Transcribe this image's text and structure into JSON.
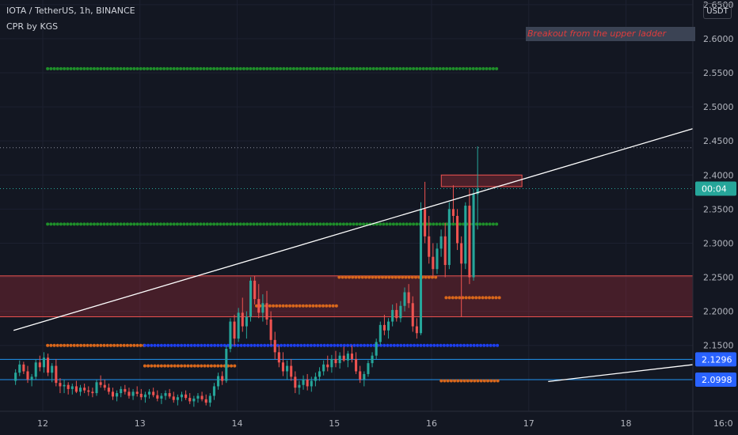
{
  "header": {
    "symbol_line": "IOTA / TetherUS, 1h, BINANCE",
    "indicator_line": "CPR by KGS"
  },
  "currency_button": "USDT",
  "annotation": "Breakout from the upper ladder",
  "colors": {
    "background": "#131722",
    "up": "#26a69a",
    "down": "#ef5350",
    "cpr_green": "#1f8f2a",
    "cpr_orange": "#d9671b",
    "cpr_blue": "#1e3ff0",
    "zone": "#b8303a",
    "hline": "#2196f3",
    "trendline": "#ffffff",
    "price_tag": "#26a69a",
    "axis_tag": "#2962ff"
  },
  "chart_data": {
    "type": "candlestick",
    "ylim": [
      2.095,
      2.65
    ],
    "yticks": [
      "2.1500",
      "2.2000",
      "2.2500",
      "2.3000",
      "2.3500",
      "2.4000",
      "2.4500",
      "2.5000",
      "2.5500",
      "2.6000",
      "2.6500"
    ],
    "xlim": [
      11.7,
      19.0
    ],
    "xticks": [
      {
        "label": "12",
        "value": 12
      },
      {
        "label": "13",
        "value": 13
      },
      {
        "label": "14",
        "value": 14
      },
      {
        "label": "15",
        "value": 15
      },
      {
        "label": "16",
        "value": 16
      },
      {
        "label": "17",
        "value": 17
      },
      {
        "label": "18",
        "value": 18
      },
      {
        "label": "16:0",
        "value": 19
      }
    ],
    "price_labels": [
      {
        "text": "00:04",
        "value": 2.38,
        "kind": "last"
      },
      {
        "text": "2.1296",
        "value": 2.1296,
        "kind": "line"
      },
      {
        "text": "2.0998",
        "value": 2.0998,
        "kind": "line"
      }
    ],
    "horizontal_lines": [
      2.1296,
      2.0998
    ],
    "dotted_levels": [
      2.44,
      2.38
    ],
    "zone": {
      "from": 12.0,
      "to": 19.0,
      "top": 2.252,
      "bottom": 2.192
    },
    "small_box": {
      "from": 16.1,
      "to": 16.93,
      "top": 2.4,
      "bottom": 2.383
    },
    "trendlines": [
      {
        "x1": 11.7,
        "y1": 2.172,
        "x2": 18.9,
        "y2": 2.477
      },
      {
        "x1": 17.2,
        "y1": 2.097,
        "x2": 19.0,
        "y2": 2.127
      }
    ],
    "cpr_levels": [
      {
        "color": "green",
        "from": 12.05,
        "to": 16.7,
        "value": 2.556
      },
      {
        "color": "green",
        "from": 12.05,
        "to": 16.7,
        "value": 2.328
      },
      {
        "color": "orange",
        "from": 12.05,
        "to": 13.05,
        "value": 2.15
      },
      {
        "color": "blue",
        "from": 13.05,
        "to": 16.7,
        "value": 2.15
      },
      {
        "color": "orange",
        "from": 13.05,
        "to": 14.0,
        "value": 2.12
      },
      {
        "color": "orange",
        "from": 14.2,
        "to": 15.05,
        "value": 2.208
      },
      {
        "color": "orange",
        "from": 15.05,
        "to": 16.05,
        "value": 2.25
      },
      {
        "color": "orange",
        "from": 16.15,
        "to": 16.7,
        "value": 2.22
      },
      {
        "color": "orange",
        "from": 16.1,
        "to": 16.7,
        "value": 2.098
      }
    ],
    "candles_step": 0.0417,
    "candles_start": 11.72,
    "candles": [
      [
        2.098,
        2.115,
        2.092,
        2.11
      ],
      [
        2.11,
        2.128,
        2.105,
        2.122
      ],
      [
        2.122,
        2.126,
        2.108,
        2.112
      ],
      [
        2.112,
        2.12,
        2.095,
        2.1
      ],
      [
        2.1,
        2.108,
        2.09,
        2.104
      ],
      [
        2.104,
        2.13,
        2.1,
        2.125
      ],
      [
        2.125,
        2.135,
        2.112,
        2.118
      ],
      [
        2.118,
        2.14,
        2.11,
        2.132
      ],
      [
        2.132,
        2.138,
        2.105,
        2.11
      ],
      [
        2.11,
        2.124,
        2.096,
        2.12
      ],
      [
        2.12,
        2.13,
        2.09,
        2.095
      ],
      [
        2.095,
        2.102,
        2.08,
        2.09
      ],
      [
        2.09,
        2.1,
        2.08,
        2.092
      ],
      [
        2.092,
        2.096,
        2.078,
        2.086
      ],
      [
        2.086,
        2.094,
        2.078,
        2.09
      ],
      [
        2.09,
        2.098,
        2.08,
        2.082
      ],
      [
        2.082,
        2.092,
        2.076,
        2.088
      ],
      [
        2.088,
        2.094,
        2.08,
        2.084
      ],
      [
        2.084,
        2.09,
        2.076,
        2.082
      ],
      [
        2.082,
        2.088,
        2.074,
        2.08
      ],
      [
        2.08,
        2.1,
        2.076,
        2.096
      ],
      [
        2.096,
        2.106,
        2.088,
        2.092
      ],
      [
        2.092,
        2.1,
        2.084,
        2.088
      ],
      [
        2.088,
        2.094,
        2.078,
        2.082
      ],
      [
        2.082,
        2.088,
        2.07,
        2.075
      ],
      [
        2.075,
        2.084,
        2.068,
        2.08
      ],
      [
        2.08,
        2.09,
        2.074,
        2.086
      ],
      [
        2.086,
        2.092,
        2.078,
        2.082
      ],
      [
        2.082,
        2.088,
        2.072,
        2.076
      ],
      [
        2.076,
        2.086,
        2.07,
        2.082
      ],
      [
        2.082,
        2.09,
        2.075,
        2.079
      ],
      [
        2.079,
        2.086,
        2.07,
        2.074
      ],
      [
        2.074,
        2.082,
        2.066,
        2.078
      ],
      [
        2.078,
        2.086,
        2.072,
        2.082
      ],
      [
        2.082,
        2.088,
        2.074,
        2.077
      ],
      [
        2.077,
        2.084,
        2.068,
        2.072
      ],
      [
        2.072,
        2.08,
        2.064,
        2.076
      ],
      [
        2.076,
        2.084,
        2.07,
        2.08
      ],
      [
        2.08,
        2.086,
        2.072,
        2.075
      ],
      [
        2.075,
        2.082,
        2.066,
        2.07
      ],
      [
        2.07,
        2.078,
        2.062,
        2.074
      ],
      [
        2.074,
        2.082,
        2.068,
        2.078
      ],
      [
        2.078,
        2.084,
        2.07,
        2.073
      ],
      [
        2.073,
        2.08,
        2.064,
        2.068
      ],
      [
        2.068,
        2.076,
        2.06,
        2.072
      ],
      [
        2.072,
        2.08,
        2.066,
        2.076
      ],
      [
        2.076,
        2.082,
        2.068,
        2.071
      ],
      [
        2.071,
        2.078,
        2.062,
        2.066
      ],
      [
        2.066,
        2.08,
        2.06,
        2.076
      ],
      [
        2.076,
        2.095,
        2.07,
        2.09
      ],
      [
        2.09,
        2.11,
        2.085,
        2.105
      ],
      [
        2.105,
        2.112,
        2.092,
        2.098
      ],
      [
        2.098,
        2.15,
        2.095,
        2.145
      ],
      [
        2.145,
        2.19,
        2.14,
        2.185
      ],
      [
        2.185,
        2.195,
        2.15,
        2.16
      ],
      [
        2.16,
        2.205,
        2.155,
        2.198
      ],
      [
        2.198,
        2.22,
        2.17,
        2.178
      ],
      [
        2.178,
        2.2,
        2.16,
        2.192
      ],
      [
        2.192,
        2.25,
        2.185,
        2.245
      ],
      [
        2.245,
        2.252,
        2.21,
        2.218
      ],
      [
        2.218,
        2.24,
        2.19,
        2.198
      ],
      [
        2.198,
        2.225,
        2.185,
        2.212
      ],
      [
        2.212,
        2.23,
        2.18,
        2.188
      ],
      [
        2.188,
        2.2,
        2.15,
        2.158
      ],
      [
        2.158,
        2.17,
        2.13,
        2.14
      ],
      [
        2.14,
        2.15,
        2.118,
        2.125
      ],
      [
        2.125,
        2.14,
        2.105,
        2.112
      ],
      [
        2.112,
        2.128,
        2.1,
        2.12
      ],
      [
        2.12,
        2.13,
        2.098,
        2.104
      ],
      [
        2.104,
        2.112,
        2.08,
        2.088
      ],
      [
        2.088,
        2.098,
        2.078,
        2.092
      ],
      [
        2.092,
        2.106,
        2.085,
        2.1
      ],
      [
        2.1,
        2.108,
        2.084,
        2.09
      ],
      [
        2.09,
        2.104,
        2.082,
        2.098
      ],
      [
        2.098,
        2.11,
        2.09,
        2.104
      ],
      [
        2.104,
        2.118,
        2.098,
        2.112
      ],
      [
        2.112,
        2.128,
        2.106,
        2.122
      ],
      [
        2.122,
        2.135,
        2.112,
        2.118
      ],
      [
        2.118,
        2.136,
        2.11,
        2.13
      ],
      [
        2.13,
        2.142,
        2.118,
        2.124
      ],
      [
        2.124,
        2.14,
        2.116,
        2.135
      ],
      [
        2.135,
        2.148,
        2.126,
        2.128
      ],
      [
        2.128,
        2.142,
        2.118,
        2.138
      ],
      [
        2.138,
        2.15,
        2.125,
        2.13
      ],
      [
        2.13,
        2.14,
        2.108,
        2.112
      ],
      [
        2.112,
        2.12,
        2.095,
        2.1
      ],
      [
        2.1,
        2.112,
        2.09,
        2.108
      ],
      [
        2.108,
        2.128,
        2.104,
        2.124
      ],
      [
        2.124,
        2.14,
        2.118,
        2.135
      ],
      [
        2.135,
        2.16,
        2.13,
        2.155
      ],
      [
        2.155,
        2.185,
        2.15,
        2.18
      ],
      [
        2.18,
        2.195,
        2.165,
        2.172
      ],
      [
        2.172,
        2.19,
        2.16,
        2.185
      ],
      [
        2.185,
        2.21,
        2.178,
        2.202
      ],
      [
        2.202,
        2.212,
        2.185,
        2.19
      ],
      [
        2.19,
        2.215,
        2.184,
        2.208
      ],
      [
        2.208,
        2.235,
        2.2,
        2.228
      ],
      [
        2.228,
        2.24,
        2.205,
        2.212
      ],
      [
        2.212,
        2.222,
        2.17,
        2.178
      ],
      [
        2.178,
        2.19,
        2.16,
        2.168
      ],
      [
        2.168,
        2.36,
        2.165,
        2.35
      ],
      [
        2.35,
        2.39,
        2.3,
        2.31
      ],
      [
        2.31,
        2.34,
        2.27,
        2.28
      ],
      [
        2.28,
        2.3,
        2.25,
        2.262
      ],
      [
        2.262,
        2.3,
        2.255,
        2.292
      ],
      [
        2.292,
        2.32,
        2.28,
        2.31
      ],
      [
        2.31,
        2.33,
        2.25,
        2.268
      ],
      [
        2.268,
        2.36,
        2.262,
        2.35
      ],
      [
        2.35,
        2.385,
        2.33,
        2.34
      ],
      [
        2.34,
        2.35,
        2.29,
        2.3
      ],
      [
        2.3,
        2.31,
        2.192,
        2.27
      ],
      [
        2.27,
        2.36,
        2.262,
        2.355
      ],
      [
        2.355,
        2.38,
        2.24,
        2.25
      ],
      [
        2.25,
        2.38,
        2.245,
        2.372
      ],
      [
        2.372,
        2.442,
        2.32,
        2.38
      ]
    ]
  }
}
